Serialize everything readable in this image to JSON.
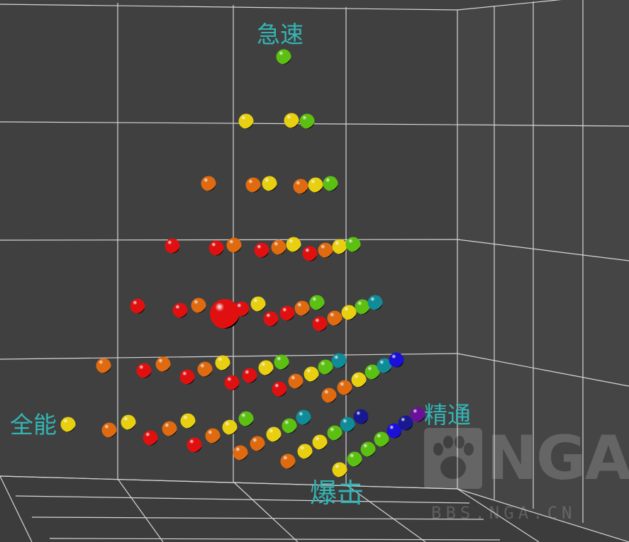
{
  "chart_data": {
    "type": "scatter3d",
    "axes": {
      "vertical": "急速",
      "left": "全能",
      "right": "精通",
      "front": "爆击"
    },
    "grid": true,
    "series_colors": {
      "red": "#e01010",
      "orange": "#e06a10",
      "yellow": "#e8d010",
      "green": "#5cc012",
      "teal": "#108c98",
      "blue": "#1a10d8",
      "navy": "#181890",
      "purple": "#6a109a"
    },
    "highlight_color": "#ff1010",
    "points": [
      {
        "color": "green"
      },
      {
        "color": "yellow"
      },
      {
        "color": "yellow"
      },
      {
        "color": "green"
      },
      {
        "color": "orange"
      },
      {
        "color": "orange"
      },
      {
        "color": "yellow"
      },
      {
        "color": "orange"
      },
      {
        "color": "yellow"
      },
      {
        "color": "green"
      },
      {
        "color": "red"
      },
      {
        "color": "red"
      },
      {
        "color": "orange"
      },
      {
        "color": "red"
      },
      {
        "color": "orange"
      },
      {
        "color": "yellow"
      },
      {
        "color": "red"
      },
      {
        "color": "orange"
      },
      {
        "color": "yellow"
      },
      {
        "color": "green"
      },
      {
        "color": "red"
      },
      {
        "color": "red"
      },
      {
        "color": "orange"
      },
      {
        "color": "red",
        "highlight": true
      },
      {
        "color": "red"
      },
      {
        "color": "yellow"
      },
      {
        "color": "red"
      },
      {
        "color": "red"
      },
      {
        "color": "orange"
      },
      {
        "color": "green"
      },
      {
        "color": "red"
      },
      {
        "color": "orange"
      },
      {
        "color": "yellow"
      },
      {
        "color": "green"
      },
      {
        "color": "teal"
      },
      {
        "color": "orange"
      },
      {
        "color": "red"
      },
      {
        "color": "orange"
      },
      {
        "color": "red"
      },
      {
        "color": "orange"
      },
      {
        "color": "yellow"
      },
      {
        "color": "red"
      },
      {
        "color": "red"
      },
      {
        "color": "yellow"
      },
      {
        "color": "green"
      },
      {
        "color": "red"
      },
      {
        "color": "orange"
      },
      {
        "color": "yellow"
      },
      {
        "color": "green"
      },
      {
        "color": "teal"
      },
      {
        "color": "orange"
      },
      {
        "color": "orange"
      },
      {
        "color": "yellow"
      },
      {
        "color": "green"
      },
      {
        "color": "teal"
      },
      {
        "color": "blue"
      },
      {
        "color": "yellow"
      },
      {
        "color": "orange"
      },
      {
        "color": "yellow"
      },
      {
        "color": "red"
      },
      {
        "color": "orange"
      },
      {
        "color": "yellow"
      },
      {
        "color": "red"
      },
      {
        "color": "orange"
      },
      {
        "color": "yellow"
      },
      {
        "color": "green"
      },
      {
        "color": "orange"
      },
      {
        "color": "orange"
      },
      {
        "color": "yellow"
      },
      {
        "color": "green"
      },
      {
        "color": "teal"
      },
      {
        "color": "orange"
      },
      {
        "color": "yellow"
      },
      {
        "color": "yellow"
      },
      {
        "color": "green"
      },
      {
        "color": "teal"
      },
      {
        "color": "navy"
      },
      {
        "color": "yellow"
      },
      {
        "color": "green"
      },
      {
        "color": "green"
      },
      {
        "color": "green"
      },
      {
        "color": "blue"
      },
      {
        "color": "navy"
      },
      {
        "color": "purple"
      }
    ]
  },
  "watermark": {
    "logo": "NGA",
    "url": "BBS.NGA.CN"
  }
}
